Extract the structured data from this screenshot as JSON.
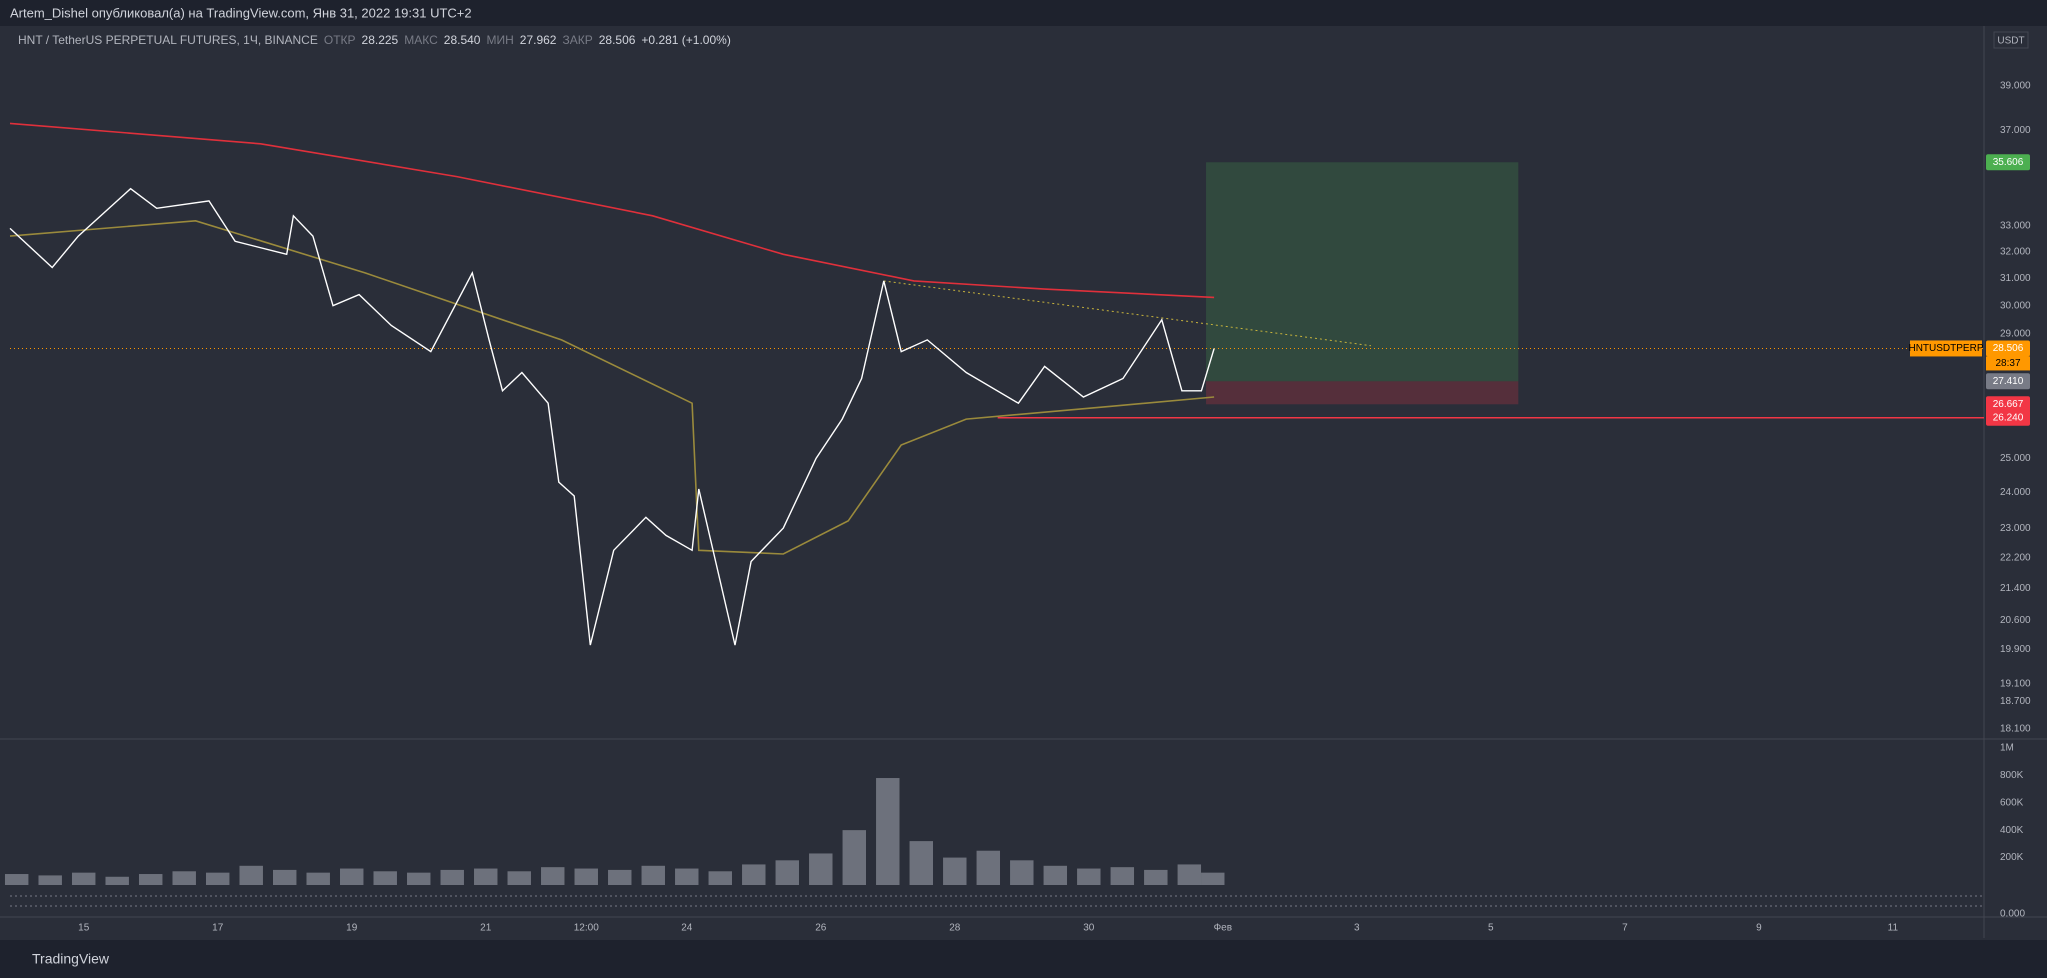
{
  "header": {
    "text": "Artem_Dishel опубликовал(а) на TradingView.com, Янв 31, 2022 19:31 UTC+2"
  },
  "legend": {
    "symbol": "HNT / TetherUS PERPETUAL FUTURES, 1Ч, BINANCE",
    "open_label": "ОТКР",
    "open": "28.225",
    "high_label": "МАКС",
    "high": "28.540",
    "low_label": "МИН",
    "low": "27.962",
    "close_label": "ЗАКР",
    "close": "28.506",
    "change": "+0.281 (+1.00%)"
  },
  "currency": "USDT",
  "footer": {
    "brand": "TradingView"
  },
  "chart_data": {
    "type": "line",
    "log": true,
    "xlim": [
      13.9,
      43.36
    ],
    "ylim": [
      17.9,
      41.9
    ],
    "xticks": [
      15,
      17,
      19,
      21,
      {
        "value": 22.5,
        "label": "12:00"
      },
      24,
      26,
      28,
      30,
      {
        "value": 32,
        "label": "Фев"
      },
      {
        "value": 34,
        "label": "3"
      },
      {
        "value": 36,
        "label": "5"
      },
      {
        "value": 38,
        "label": "7"
      },
      {
        "value": 40,
        "label": "9"
      },
      {
        "value": 42,
        "label": "11"
      }
    ],
    "yticks": [
      {
        "value": 39,
        "label": "39.000"
      },
      {
        "value": 37,
        "label": "37.000"
      },
      {
        "value": 33,
        "label": "33.000"
      },
      {
        "value": 32,
        "label": "32.000"
      },
      {
        "value": 31,
        "label": "31.000"
      },
      {
        "value": 30,
        "label": "30.000"
      },
      {
        "value": 29,
        "label": "29.000"
      },
      {
        "value": 25,
        "label": "25.000"
      },
      {
        "value": 24,
        "label": "24.000"
      },
      {
        "value": 23,
        "label": "23.000"
      },
      {
        "value": 22.2,
        "label": "22.200"
      },
      {
        "value": 21.4,
        "label": "21.400"
      },
      {
        "value": 20.6,
        "label": "20.600"
      },
      {
        "value": 19.9,
        "label": "19.900"
      },
      {
        "value": 19.1,
        "label": "19.100"
      },
      {
        "value": 18.7,
        "label": "18.700"
      },
      {
        "value": 18.1,
        "label": "18.100"
      }
    ],
    "series": [
      {
        "color": "#ffffff",
        "x": [
          13.9,
          14.53,
          14.92,
          15.7,
          16.09,
          16.87,
          17.26,
          18.03,
          18.13,
          18.42,
          18.72,
          19.11,
          19.59,
          20.18,
          20.8,
          21.05,
          21.25,
          21.54,
          21.93,
          22.09,
          22.32,
          22.56,
          22.91,
          23.39,
          23.69,
          24.08,
          24.18,
          24.47,
          24.72,
          24.96,
          25.44,
          25.93,
          26.32,
          26.61,
          26.94,
          27.2,
          27.59,
          28.17,
          28.95,
          29.34,
          29.92,
          30.51,
          31.09,
          31.39,
          31.68,
          31.87
        ],
        "values": [
          32.9,
          31.4,
          32.6,
          34.5,
          33.7,
          34.0,
          32.4,
          31.9,
          33.4,
          32.6,
          30.0,
          30.4,
          29.3,
          28.4,
          31.2,
          28.8,
          27.1,
          27.7,
          26.7,
          24.3,
          23.9,
          20.0,
          22.4,
          23.3,
          22.8,
          22.4,
          24.1,
          21.8,
          20.0,
          22.1,
          23.0,
          25.0,
          26.2,
          27.5,
          30.9,
          28.4,
          28.8,
          27.7,
          26.7,
          27.9,
          26.9,
          27.5,
          29.5,
          27.1,
          27.1,
          28.5
        ]
      },
      {
        "color": "#e0303b",
        "x": [
          13.9,
          17.64,
          20.57,
          23.49,
          25.44,
          27.39,
          29.34,
          31.87
        ],
        "values": [
          37.3,
          36.4,
          35.0,
          33.4,
          31.9,
          30.9,
          30.6,
          30.3
        ]
      },
      {
        "color": "#9a8a3c",
        "x": [
          13.9,
          16.67,
          19.2,
          22.13,
          24.08,
          24.18,
          25.44,
          26.41,
          27.2,
          28.17,
          30.31,
          31.87
        ],
        "values": [
          32.6,
          33.2,
          31.2,
          28.8,
          26.7,
          22.4,
          22.3,
          23.2,
          25.4,
          26.2,
          26.6,
          26.9
        ]
      }
    ],
    "position": {
      "x": [
        31.75,
        36.41
      ],
      "target": 35.606,
      "entry": 27.41,
      "stop": 26.667
    },
    "trend": {
      "x": [
        26.94,
        34.21
      ],
      "values": [
        30.9,
        28.6
      ]
    },
    "level": {
      "x": 28.64,
      "value": 26.24
    },
    "tags": [
      {
        "value": 35.606,
        "label": "35.606",
        "color": "#4caf50"
      },
      {
        "value": 28.506,
        "label": "28.506",
        "color": "#ff9800"
      },
      {
        "value": 27.41,
        "label": "27.410",
        "color": "#787b86"
      },
      {
        "value": 26.667,
        "label": "26.667",
        "color": "#f23645"
      },
      {
        "value": 26.24,
        "label": "26.240",
        "color": "#f23645"
      }
    ],
    "symbol_tag": "HNTUSDTPERP",
    "countdown": "28:37",
    "volume": {
      "color": "#8a8e99",
      "ylim": [
        0,
        1050000
      ],
      "yticks": [
        {
          "value": 1000000,
          "label": "1M"
        },
        {
          "value": 800000,
          "label": "800K"
        },
        {
          "value": 600000,
          "label": "600K"
        },
        {
          "value": 400000,
          "label": "400K"
        },
        {
          "value": 200000,
          "label": "200K"
        }
      ],
      "x": [
        14,
        14.5,
        15,
        15.5,
        16,
        16.5,
        17,
        17.5,
        18,
        18.5,
        19,
        19.5,
        20,
        20.5,
        21,
        21.5,
        22,
        22.5,
        23,
        23.5,
        24,
        24.5,
        25,
        25.5,
        26,
        26.5,
        27,
        27.5,
        28,
        28.5,
        29,
        29.5,
        30,
        30.5,
        31,
        31.5,
        31.85
      ],
      "values": [
        80000,
        70000,
        90000,
        60000,
        80000,
        100000,
        90000,
        140000,
        110000,
        90000,
        120000,
        100000,
        90000,
        110000,
        120000,
        100000,
        130000,
        120000,
        110000,
        140000,
        120000,
        100000,
        150000,
        180000,
        230000,
        400000,
        780000,
        320000,
        200000,
        250000,
        180000,
        140000,
        120000,
        130000,
        110000,
        150000,
        90000
      ]
    },
    "osc_label": "0.000"
  }
}
